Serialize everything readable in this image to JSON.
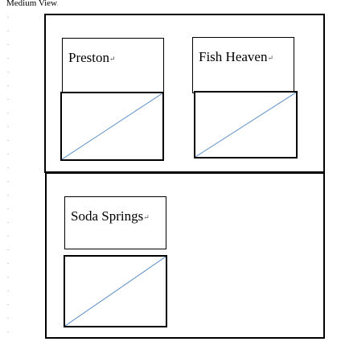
{
  "heading": {
    "text": "Medium View",
    "mark": "."
  },
  "margin_marks": [
    ".",
    ".",
    ".",
    ".",
    ".",
    ".",
    ".",
    ".",
    ".",
    ".",
    ".",
    ".",
    ".",
    ".",
    ".",
    ".",
    ".",
    ".",
    ".",
    ".",
    ".",
    ".",
    ".",
    "."
  ],
  "paragraph_mark": "↵",
  "cards": [
    {
      "name": "Preston",
      "image_placeholder": "empty-image"
    },
    {
      "name": "Fish Heaven",
      "image_placeholder": "empty-image"
    },
    {
      "name": "Soda Springs",
      "image_placeholder": "empty-image"
    }
  ],
  "colors": {
    "border": "#000000",
    "diagonal": "#5b8fc8",
    "mark": "#8a8a8a"
  }
}
